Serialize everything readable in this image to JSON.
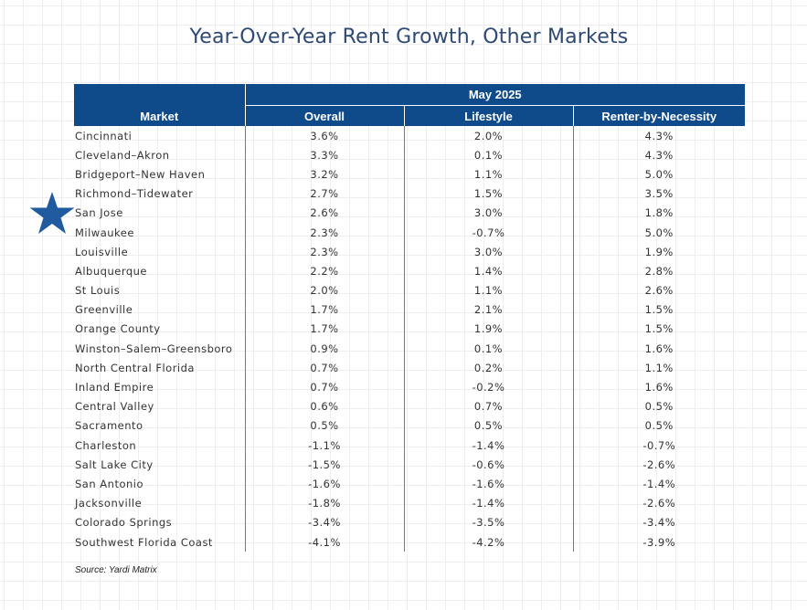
{
  "chart_data": {
    "type": "table",
    "title": "Year-Over-Year Rent Growth, Other Markets",
    "period": "May 2025",
    "columns": [
      "Market",
      "Overall",
      "Lifestyle",
      "Renter-by-Necessity"
    ],
    "rows": [
      {
        "market": "Cincinnati",
        "overall": "3.6%",
        "lifestyle": "2.0%",
        "rbn": "4.3%"
      },
      {
        "market": "Cleveland–Akron",
        "overall": "3.3%",
        "lifestyle": "0.1%",
        "rbn": "4.3%"
      },
      {
        "market": "Bridgeport–New Haven",
        "overall": "3.2%",
        "lifestyle": "1.1%",
        "rbn": "5.0%"
      },
      {
        "market": "Richmond–Tidewater",
        "overall": "2.7%",
        "lifestyle": "1.5%",
        "rbn": "3.5%"
      },
      {
        "market": "San Jose",
        "overall": "2.6%",
        "lifestyle": "3.0%",
        "rbn": "1.8%"
      },
      {
        "market": "Milwaukee",
        "overall": "2.3%",
        "lifestyle": "-0.7%",
        "rbn": "5.0%"
      },
      {
        "market": "Louisville",
        "overall": "2.3%",
        "lifestyle": "3.0%",
        "rbn": "1.9%"
      },
      {
        "market": "Albuquerque",
        "overall": "2.2%",
        "lifestyle": "1.4%",
        "rbn": "2.8%"
      },
      {
        "market": "St Louis",
        "overall": "2.0%",
        "lifestyle": "1.1%",
        "rbn": "2.6%"
      },
      {
        "market": "Greenville",
        "overall": "1.7%",
        "lifestyle": "2.1%",
        "rbn": "1.5%"
      },
      {
        "market": "Orange County",
        "overall": "1.7%",
        "lifestyle": "1.9%",
        "rbn": "1.5%"
      },
      {
        "market": "Winston–Salem–Greensboro",
        "overall": "0.9%",
        "lifestyle": "0.1%",
        "rbn": "1.6%"
      },
      {
        "market": "North Central Florida",
        "overall": "0.7%",
        "lifestyle": "0.2%",
        "rbn": "1.1%"
      },
      {
        "market": "Inland Empire",
        "overall": "0.7%",
        "lifestyle": "-0.2%",
        "rbn": "1.6%"
      },
      {
        "market": "Central Valley",
        "overall": "0.6%",
        "lifestyle": "0.7%",
        "rbn": "0.5%"
      },
      {
        "market": "Sacramento",
        "overall": "0.5%",
        "lifestyle": "0.5%",
        "rbn": "0.5%"
      },
      {
        "market": "Charleston",
        "overall": "-1.1%",
        "lifestyle": "-1.4%",
        "rbn": "-0.7%"
      },
      {
        "market": "Salt Lake City",
        "overall": "-1.5%",
        "lifestyle": "-0.6%",
        "rbn": "-2.6%"
      },
      {
        "market": "San Antonio",
        "overall": "-1.6%",
        "lifestyle": "-1.6%",
        "rbn": "-1.4%"
      },
      {
        "market": "Jacksonville",
        "overall": "-1.8%",
        "lifestyle": "-1.4%",
        "rbn": "-2.6%"
      },
      {
        "market": "Colorado Springs",
        "overall": "-3.4%",
        "lifestyle": "-3.5%",
        "rbn": "-3.4%"
      },
      {
        "market": "Southwest Florida Coast",
        "overall": "-4.1%",
        "lifestyle": "-4.2%",
        "rbn": "-3.9%"
      }
    ],
    "highlighted_market": "San Jose",
    "source": "Source: Yardi Matrix"
  },
  "colors": {
    "header_fill": "#0f4a8a",
    "title_text": "#2e4a74",
    "star": "#1f5b9e"
  },
  "icons": {
    "highlight": "star-icon"
  }
}
